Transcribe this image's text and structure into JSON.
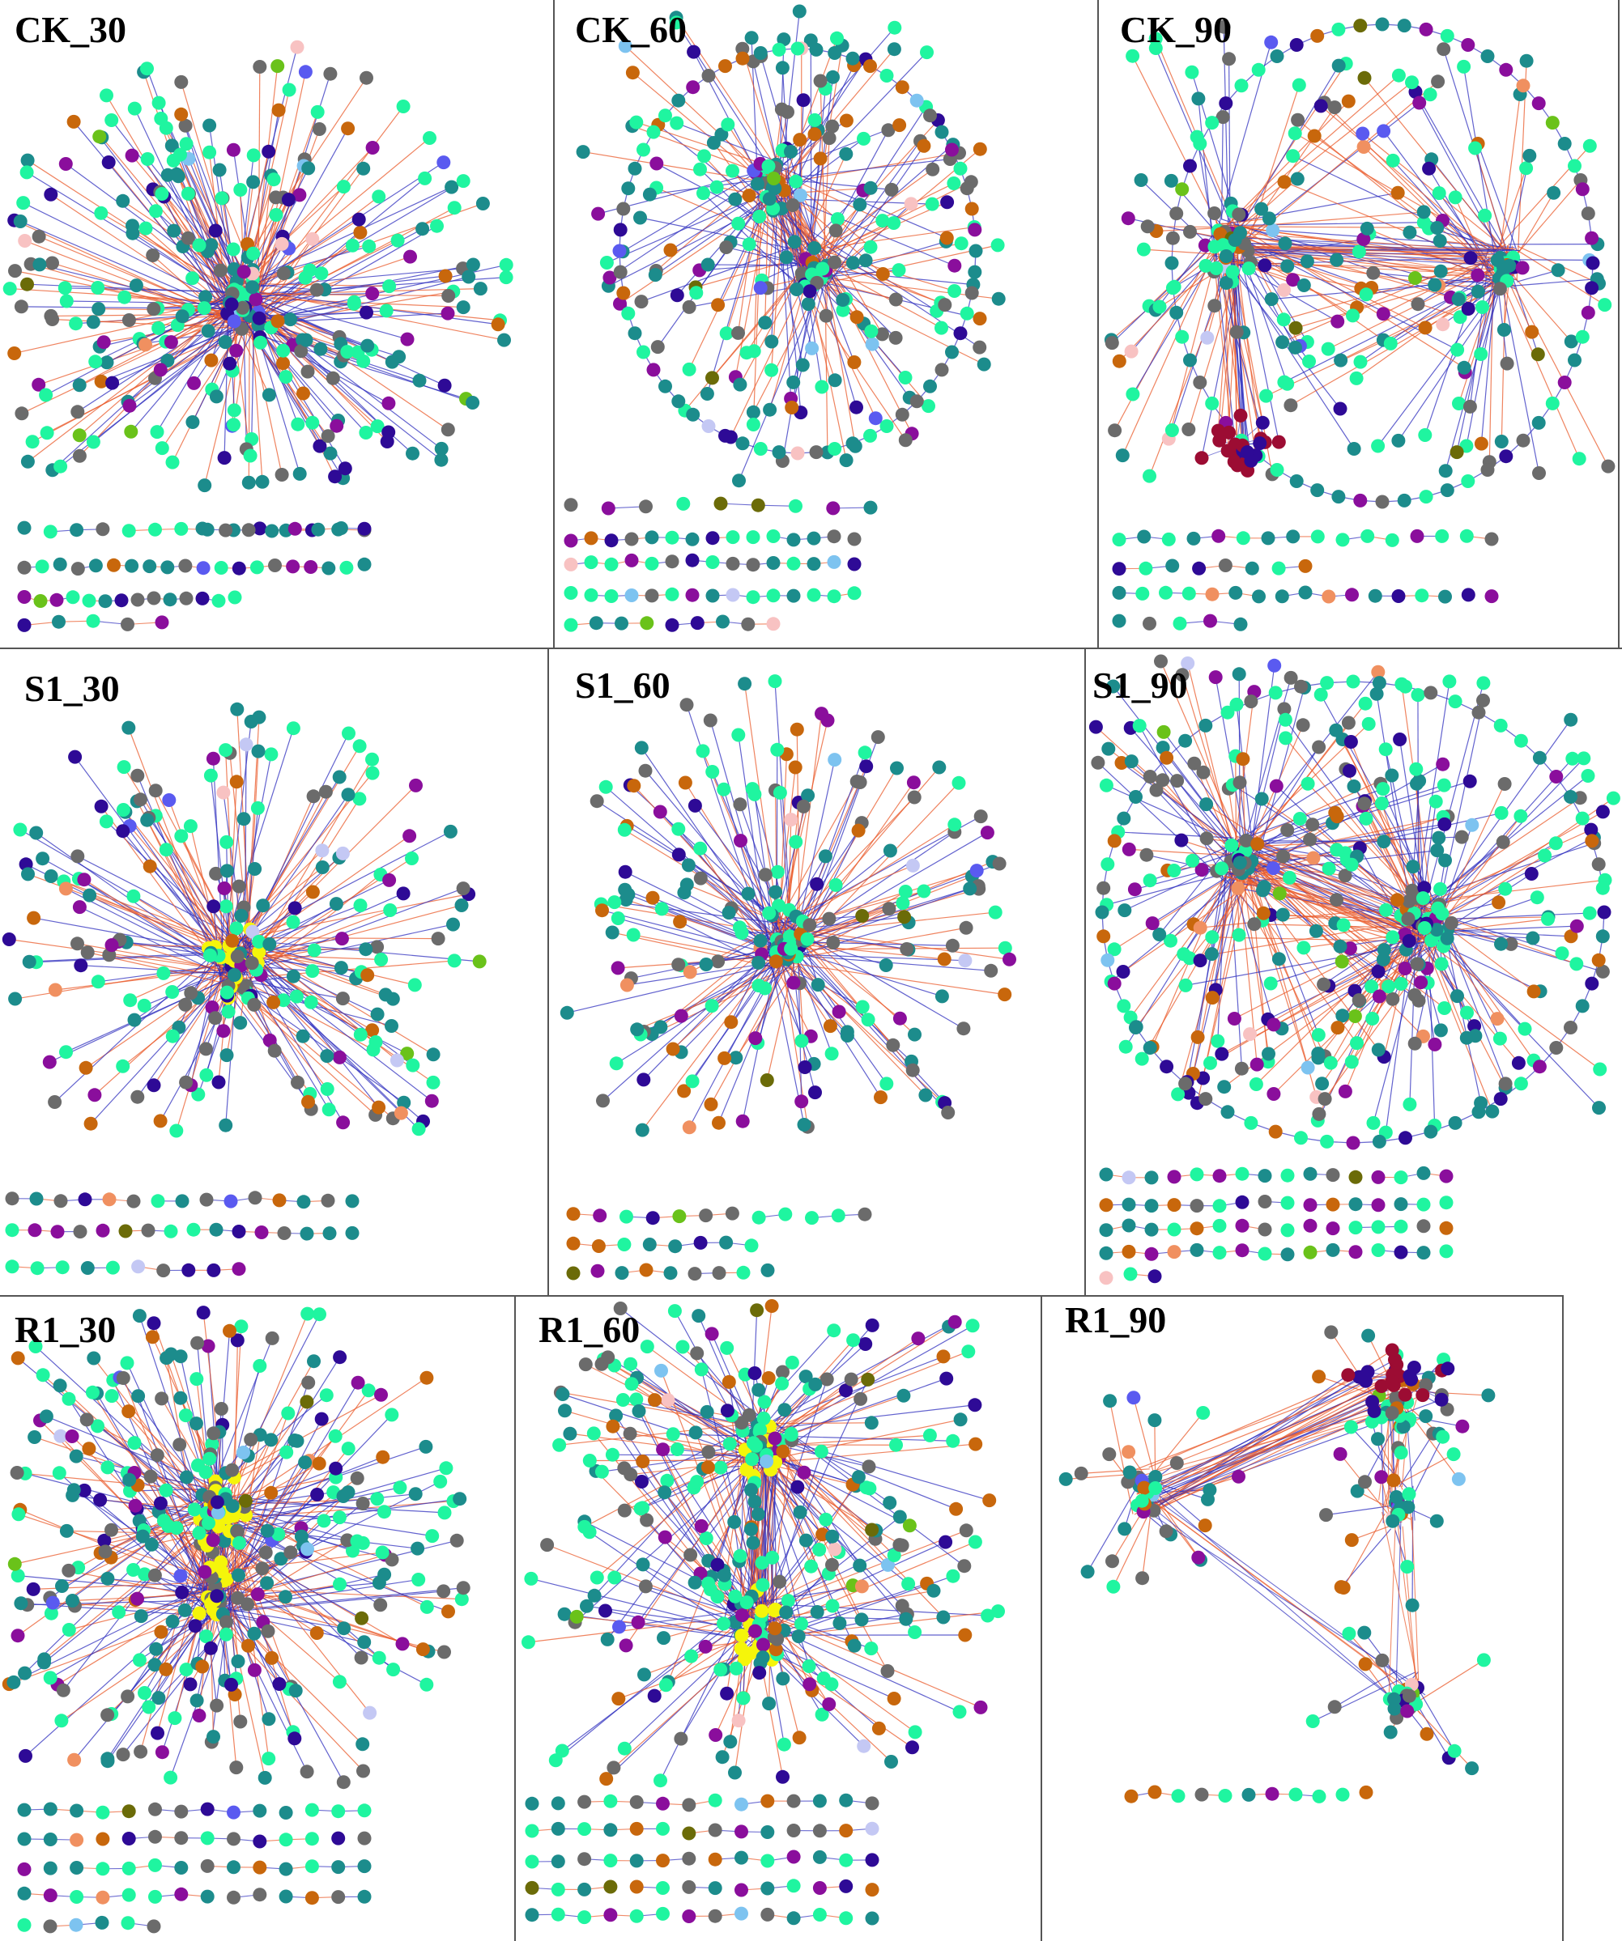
{
  "figure": {
    "panels": [
      {
        "key": "ck30",
        "title": "CK_30",
        "hub_color_role": "teal"
      },
      {
        "key": "ck60",
        "title": "CK_60",
        "hub_color_role": "teal"
      },
      {
        "key": "ck90",
        "title": "CK_90",
        "hub_color_role": "teal"
      },
      {
        "key": "s130",
        "title": "S1_30",
        "hub_color_role": "yellow"
      },
      {
        "key": "s160",
        "title": "S1_60",
        "hub_color_role": "teal"
      },
      {
        "key": "s190",
        "title": "S1_90",
        "hub_color_role": "teal"
      },
      {
        "key": "r130",
        "title": "R1_30",
        "hub_color_role": "yellow"
      },
      {
        "key": "r160",
        "title": "R1_60",
        "hub_color_role": "yellow"
      },
      {
        "key": "r190",
        "title": "R1_90",
        "hub_color_role": "maroon"
      }
    ],
    "node_colors": {
      "spring_green": "#1ff5a0",
      "teal": "#1c8c8c",
      "purple": "#8a0e9c",
      "indigo": "#2e0a96",
      "gray": "#6b6b6b",
      "orange": "#c8670c",
      "maroon": "#9c0c33",
      "pink": "#f8c2c2",
      "lavender": "#c4c8f4",
      "yellow": "#f5f50a",
      "olive": "#6b6b08",
      "lime": "#6ac21a",
      "light_blue": "#7dc3f0",
      "blue_violet": "#5a5af0",
      "salmon": "#f09060"
    },
    "edge_colors": {
      "positive": "#ea5a2a",
      "negative": "#2e2ebe"
    }
  }
}
